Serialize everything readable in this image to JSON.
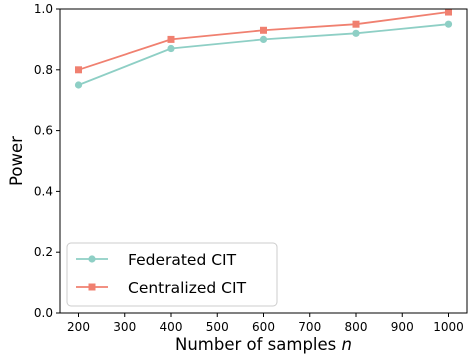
{
  "chart_data": {
    "type": "line",
    "title": "",
    "xlabel": "Number of samples",
    "xlabel_var": "n",
    "ylabel": "Power",
    "xlim": [
      160,
      1040
    ],
    "ylim": [
      0,
      1
    ],
    "xticks": [
      200,
      300,
      400,
      500,
      600,
      700,
      800,
      900,
      1000
    ],
    "yticks": [
      0.0,
      0.2,
      0.4,
      0.6,
      0.8,
      1.0
    ],
    "ytick_labels": [
      "0.0",
      "0.2",
      "0.4",
      "0.6",
      "0.8",
      "1.0"
    ],
    "grid": false,
    "legend_position": "lower-left",
    "x": [
      200,
      400,
      600,
      800,
      1000
    ],
    "series": [
      {
        "name": "Federated CIT",
        "color": "#8ecfc5",
        "marker": "circle",
        "values": [
          0.75,
          0.87,
          0.9,
          0.92,
          0.95
        ]
      },
      {
        "name": "Centralized CIT",
        "color": "#f08070",
        "marker": "square",
        "values": [
          0.8,
          0.9,
          0.93,
          0.95,
          0.99
        ]
      }
    ]
  }
}
